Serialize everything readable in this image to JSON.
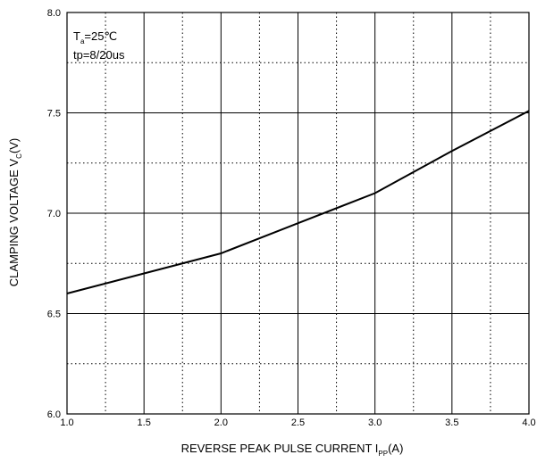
{
  "chart_data": {
    "type": "line",
    "title": "",
    "xlabel": {
      "main": "REVERSE PEAK PULSE CURRENT  I",
      "sub": "PP",
      "unit": "(A)"
    },
    "ylabel": {
      "main": "CLAMPING VOLTAGE  V",
      "sub": "C",
      "unit": "(V)"
    },
    "xlim": [
      1.0,
      4.0
    ],
    "ylim": [
      6.0,
      8.0
    ],
    "x_ticks": [
      "1.0",
      "1.5",
      "2.0",
      "2.5",
      "3.0",
      "3.5",
      "4.0"
    ],
    "y_ticks": [
      "6.0",
      "6.5",
      "7.0",
      "7.5",
      "8.0"
    ],
    "grid": {
      "major": "solid",
      "minor": "dotted"
    },
    "annotations": [
      {
        "main": "T",
        "sub": "a",
        "rest": "=25℃"
      },
      {
        "main": "tp=8/20us"
      }
    ],
    "series": [
      {
        "x": [
          1.0,
          1.5,
          2.0,
          2.5,
          3.0,
          3.5,
          4.0
        ],
        "y": [
          6.6,
          6.7,
          6.8,
          6.95,
          7.1,
          7.31,
          7.51
        ]
      }
    ]
  }
}
